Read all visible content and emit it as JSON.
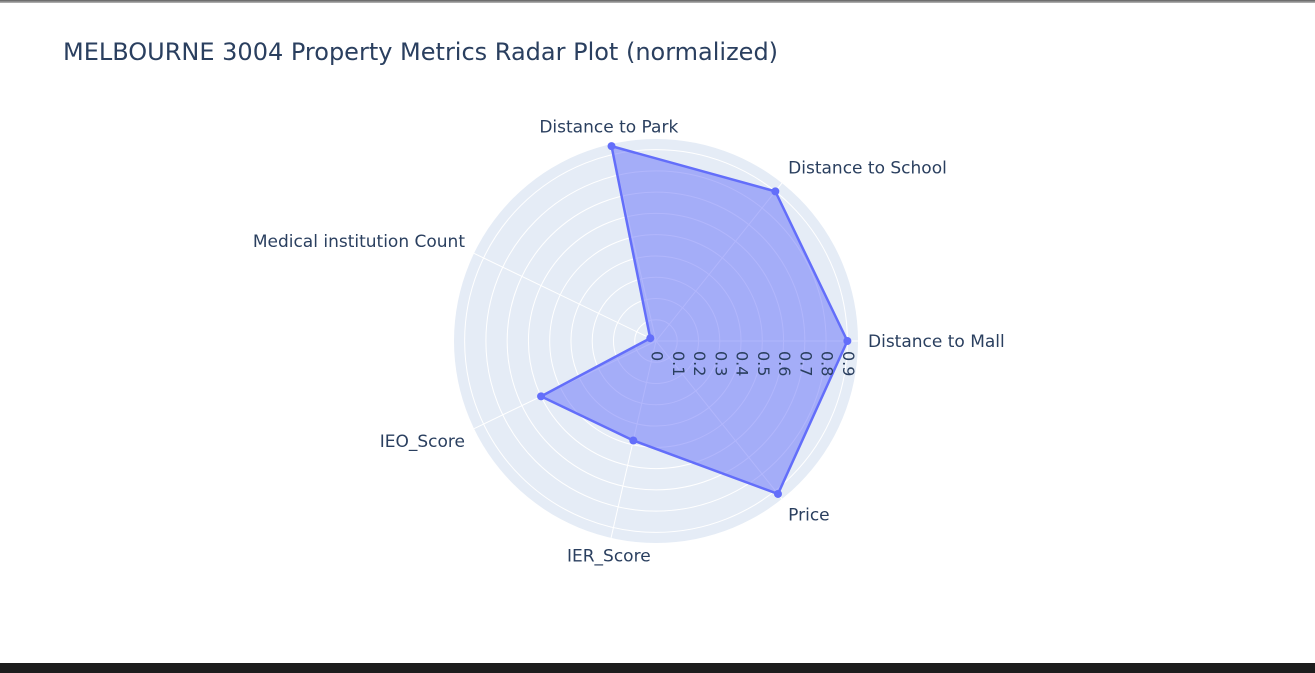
{
  "chart_data": {
    "type": "radar",
    "title": "MELBOURNE 3004 Property Metrics Radar Plot (normalized)",
    "axes": [
      "Distance to Mall",
      "Distance to School",
      "Distance to Park",
      "Medical institution Count",
      "IEO_Score",
      "IER_Score",
      "Price"
    ],
    "values": [
      0.9,
      0.9,
      0.94,
      0.03,
      0.6,
      0.48,
      0.92
    ],
    "radial_ticks": [
      "0",
      "0.1",
      "0.2",
      "0.3",
      "0.4",
      "0.5",
      "0.6",
      "0.7",
      "0.8",
      "0.9"
    ],
    "radial_range": [
      0,
      0.95
    ],
    "grid": true,
    "colors": {
      "line": "#636efa",
      "fill": "rgba(99,110,250,0.5)",
      "polar_bg": "#e5ecf6",
      "grid": "#ffffff",
      "text": "#2a3f5f"
    }
  }
}
